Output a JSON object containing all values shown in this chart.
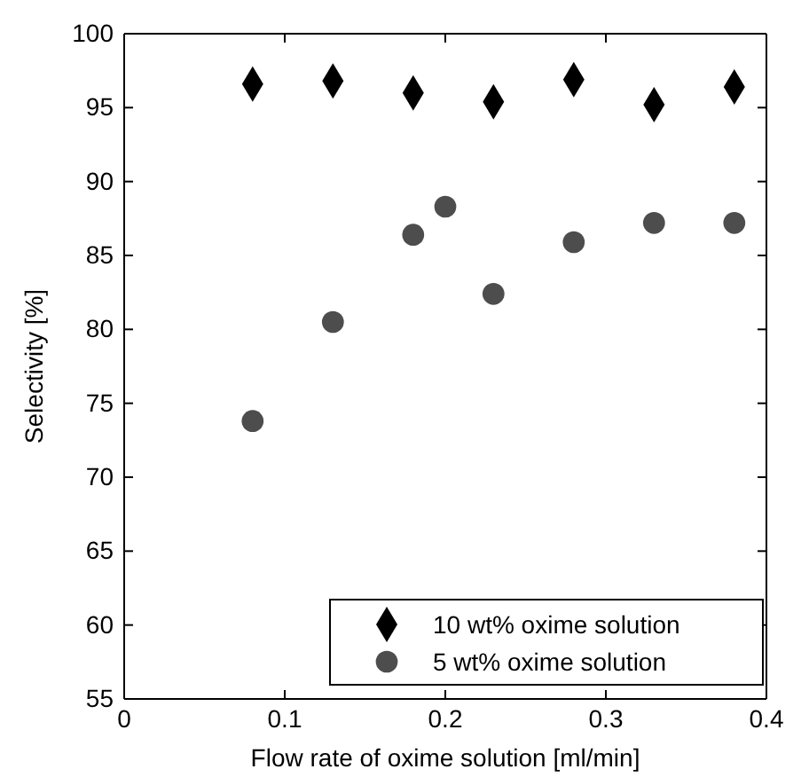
{
  "chart_data": {
    "type": "scatter",
    "xlabel": "Flow rate of oxime solution [ml/min]",
    "ylabel": "Selectivity [%]",
    "xlim": [
      0,
      0.4
    ],
    "xticks": [
      0,
      0.1,
      0.2,
      0.3,
      0.4
    ],
    "ylim": [
      55,
      100
    ],
    "yticks": [
      55,
      60,
      65,
      70,
      75,
      80,
      85,
      90,
      95,
      100
    ],
    "grid": false,
    "legend": "bottom right",
    "series": [
      {
        "name": "10 wt% oxime solution",
        "color": "#000000",
        "marker": "diamond",
        "x": [
          0.08,
          0.13,
          0.18,
          0.23,
          0.28,
          0.33,
          0.38
        ],
        "values": [
          96.6,
          96.8,
          96.0,
          95.4,
          96.9,
          95.2,
          96.4
        ]
      },
      {
        "name": "5 wt% oxime solution",
        "color": "#4d4d4d",
        "marker": "circle",
        "x": [
          0.08,
          0.13,
          0.18,
          0.2,
          0.23,
          0.28,
          0.33,
          0.38
        ],
        "values": [
          73.8,
          80.5,
          86.4,
          88.3,
          82.4,
          85.9,
          87.2,
          87.2
        ]
      }
    ]
  }
}
